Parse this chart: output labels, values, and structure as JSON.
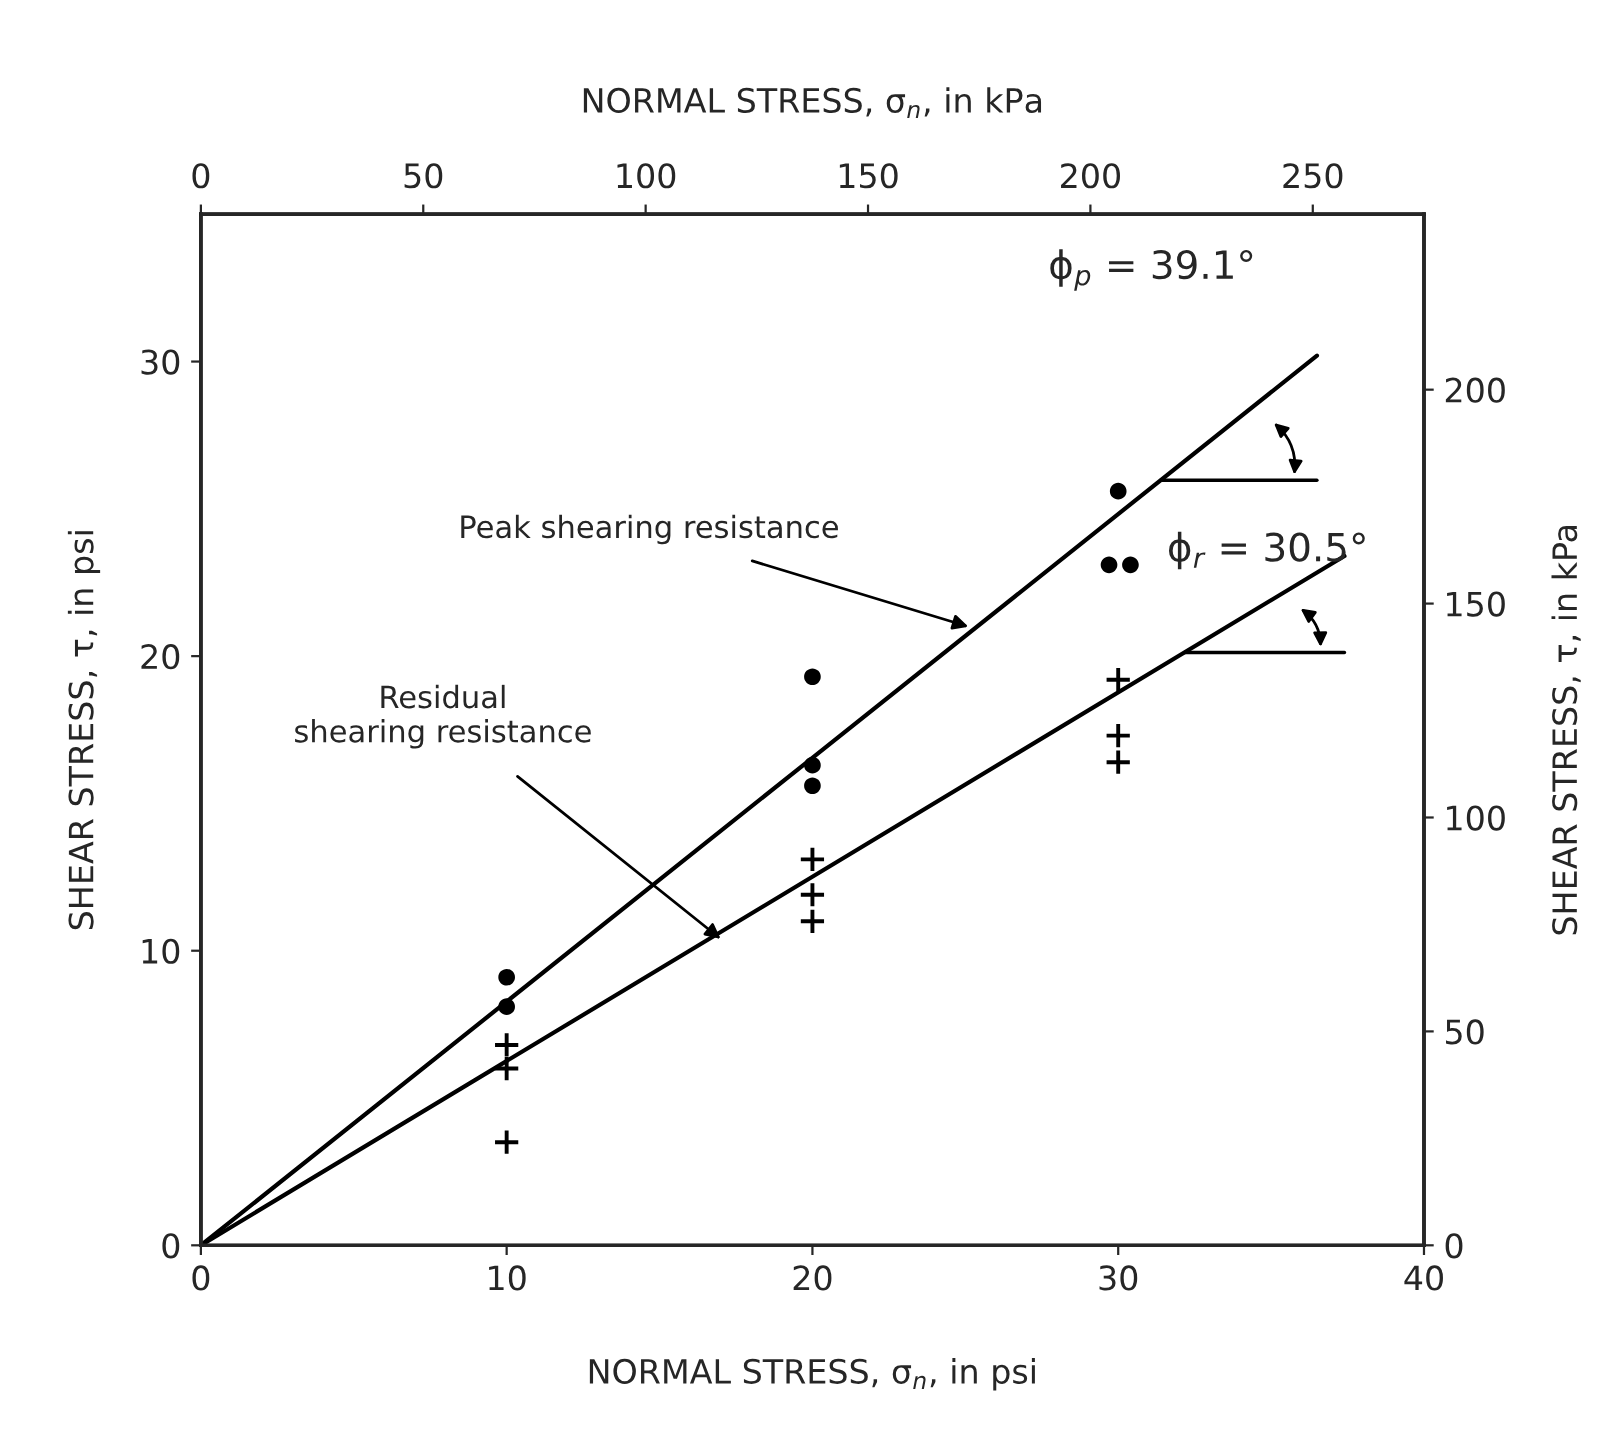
{
  "chart_data": {
    "type": "scatter",
    "xlabel": "NORMAL STRESS, σ$_{n}$, in psi",
    "x2label": "NORMAL STRESS, σ$_{n}$, in kPa",
    "ylabel": "SHEAR STRESS, τ, in psi",
    "y2label": "SHEAR STRESS, τ, in kPa",
    "xlim": [
      0,
      40
    ],
    "xticks": [
      0,
      10,
      20,
      30,
      40
    ],
    "ylim": [
      0,
      35
    ],
    "yticks": [
      0,
      10,
      20,
      30
    ],
    "x2lim": [
      0,
      275
    ],
    "x2ticks": [
      0,
      50,
      100,
      150,
      200,
      250
    ],
    "y2lim": [
      0,
      241
    ],
    "y2ticks": [
      0,
      50,
      100,
      150,
      200
    ],
    "grid": false,
    "legend": false,
    "series": [
      {
        "marker": "circle",
        "color": "#000000",
        "x": [
          10,
          10,
          20,
          20,
          20,
          30,
          29.7,
          30.4
        ],
        "values": [
          9.1,
          8.1,
          19.3,
          16.3,
          15.6,
          25.6,
          23.1,
          23.1
        ]
      },
      {
        "marker": "cross",
        "color": "#000000",
        "x": [
          10,
          10,
          10,
          20,
          20,
          20,
          30,
          30,
          30
        ],
        "values": [
          6.8,
          6.0,
          3.5,
          13.1,
          11.9,
          11.0,
          19.2,
          17.3,
          16.4
        ]
      },
      {
        "type": "line",
        "color": "#000000",
        "line_style": "solid",
        "marker": "none",
        "x": [
          0,
          36.5
        ],
        "values": [
          0,
          30.2
        ]
      },
      {
        "type": "line",
        "color": "#000000",
        "line_style": "solid",
        "marker": "none",
        "x": [
          0,
          37.4
        ],
        "values": [
          0,
          23.4
        ]
      }
    ],
    "annotations": [
      {
        "text": "Peak shearing resistance",
        "x": 25.1,
        "y": 21.0
      },
      {
        "text": "Residual\nshearing resistance",
        "x": 17.0,
        "y": 10.4
      },
      {
        "text": "ϕ$_{p}$ = 39.1°",
        "x": 35.2,
        "y": 29.1
      },
      {
        "text": "ϕ$_{r}$ = 30.5°",
        "x": 35.8,
        "y": 22.0
      }
    ]
  }
}
